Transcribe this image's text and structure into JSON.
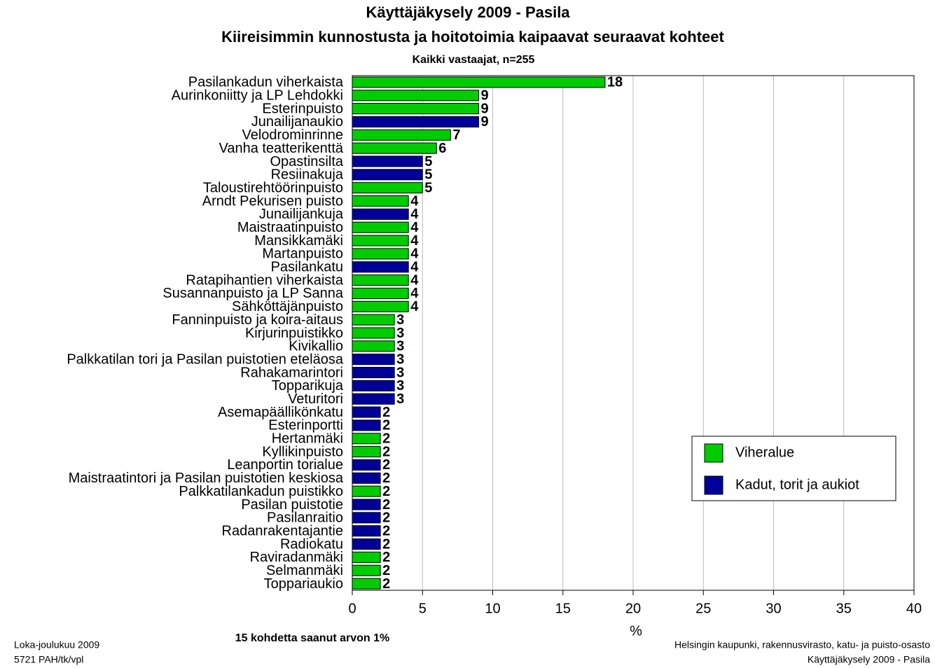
{
  "chart_data": {
    "type": "bar",
    "orientation": "horizontal",
    "title": "Käyttäjäkysely 2009 - Pasila",
    "subtitle": "Kiireisimmin kunnostusta ja hoitotoimia kaipaavat seuraavat kohteet",
    "subtitle2": "Kaikki vastaajat, n=255",
    "xlabel": "%",
    "note": "15 kohdetta saanut arvon 1%",
    "footer_left": [
      "Loka-joulukuu 2009",
      "5721 PAH/tk/vpl"
    ],
    "footer_right": [
      "Helsingin kaupunki, rakennusvirasto, katu- ja puisto-osasto",
      "Käyttäjäkysely 2009 - Pasila"
    ],
    "categories": [
      "Pasilankadun viherkaista",
      "Aurinkoniitty ja LP Lehdokki",
      "Esterinpuisto",
      "Junailijanaukio",
      "Velodrominrinne",
      "Vanha teatterikenttä",
      "Opastinsilta",
      "Resiinakuja",
      "Taloustirehtöörinpuisto",
      "Arndt Pekurisen puisto",
      "Junailijankuja",
      "Maistraatinpuisto",
      "Mansikkamäki",
      "Martanpuisto",
      "Pasilankatu",
      "Ratapihantien viherkaista",
      "Susannanpuisto ja LP Sanna",
      "Sähköttäjänpuisto",
      "Fanninpuisto ja koira-aitaus",
      "Kirjurinpuistikko",
      "Kivikallio",
      "Palkkatilan tori ja Pasilan puistotien eteläosa",
      "Rahakamarintori",
      "Topparikuja",
      "Veturitori",
      "Asemapäällikönkatu",
      "Esterinportti",
      "Hertanmäki",
      "Kyllikinpuisto",
      "Leanportin torialue",
      "Maistraatintori ja Pasilan puistotien keskiosa",
      "Palkkatilankadun puistikko",
      "Pasilan puistotie",
      "Pasilanraitio",
      "Radanrakentajantie",
      "Radiokatu",
      "Raviradanmäki",
      "Selmanmäki",
      "Toppariaukio"
    ],
    "series": [
      {
        "name": "Viheralue",
        "color": "#00cc00",
        "values": [
          18,
          9,
          9,
          null,
          7,
          6,
          null,
          null,
          5,
          4,
          null,
          4,
          4,
          4,
          null,
          4,
          4,
          4,
          3,
          3,
          3,
          null,
          null,
          null,
          null,
          null,
          null,
          2,
          2,
          null,
          null,
          2,
          null,
          null,
          null,
          null,
          2,
          2,
          2
        ]
      },
      {
        "name": "Kadut, torit ja aukiot",
        "color": "#000099",
        "values": [
          null,
          null,
          null,
          9,
          null,
          null,
          5,
          5,
          null,
          null,
          4,
          null,
          null,
          null,
          4,
          null,
          null,
          null,
          null,
          null,
          null,
          3,
          3,
          3,
          3,
          2,
          2,
          null,
          null,
          2,
          2,
          null,
          2,
          2,
          2,
          2,
          null,
          null,
          null
        ]
      }
    ],
    "xlim": [
      0,
      40
    ],
    "xticks": [
      0,
      5,
      10,
      15,
      20,
      25,
      30,
      35,
      40
    ],
    "grid": true,
    "legend": "right"
  }
}
